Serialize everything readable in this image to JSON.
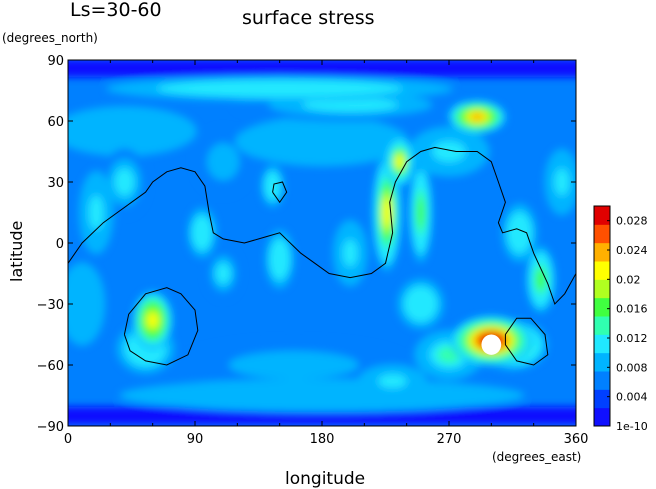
{
  "chart_data": {
    "type": "heatmap",
    "season_label": "Ls=30-60",
    "title": "surface stress",
    "xlabel": "longitude",
    "xunit": "(degrees_east)",
    "ylabel": "latitude",
    "yunit": "(degrees_north)",
    "xlim": [
      0,
      360
    ],
    "ylim": [
      -90,
      90
    ],
    "xticks": [
      0,
      90,
      180,
      270,
      360
    ],
    "yticks": [
      -90,
      -60,
      -30,
      0,
      30,
      60,
      90
    ],
    "colorbar": {
      "min": 0,
      "max": 0.03,
      "bottom_label": "1e-10",
      "tick_values": [
        0.004,
        0.008,
        0.012,
        0.016,
        0.02,
        0.024,
        0.028
      ],
      "tick_labels": [
        "0.004",
        "0.008",
        "0.012",
        "0.016",
        "0.02",
        "0.024",
        "0.028"
      ],
      "colors": [
        "#1010ff",
        "#0040ff",
        "#0080ff",
        "#00b4ff",
        "#20e8ff",
        "#30ffb0",
        "#40ff40",
        "#b0ff20",
        "#ffff00",
        "#ffb000",
        "#ff5000",
        "#e00000"
      ]
    },
    "background_value": 0.006,
    "features": [
      {
        "lon": 300,
        "lat": -48,
        "value": 0.03,
        "sx": 14,
        "sy": 6
      },
      {
        "lon": 315,
        "lat": -50,
        "value": 0.018,
        "sx": 12,
        "sy": 6
      },
      {
        "lon": 290,
        "lat": 62,
        "value": 0.024,
        "sx": 10,
        "sy": 4
      },
      {
        "lon": 60,
        "lat": -38,
        "value": 0.022,
        "sx": 7,
        "sy": 7
      },
      {
        "lon": 55,
        "lat": -52,
        "value": 0.012,
        "sx": 10,
        "sy": 6
      },
      {
        "lon": 226,
        "lat": 15,
        "value": 0.02,
        "sx": 5,
        "sy": 14
      },
      {
        "lon": 235,
        "lat": 40,
        "value": 0.02,
        "sx": 5,
        "sy": 6
      },
      {
        "lon": 250,
        "lat": 15,
        "value": 0.016,
        "sx": 4,
        "sy": 12
      },
      {
        "lon": 335,
        "lat": -18,
        "value": 0.016,
        "sx": 5,
        "sy": 8
      },
      {
        "lon": 320,
        "lat": 5,
        "value": 0.012,
        "sx": 6,
        "sy": 7
      },
      {
        "lon": 145,
        "lat": 28,
        "value": 0.012,
        "sx": 4,
        "sy": 5
      },
      {
        "lon": 95,
        "lat": 5,
        "value": 0.012,
        "sx": 5,
        "sy": 6
      },
      {
        "lon": 150,
        "lat": -8,
        "value": 0.012,
        "sx": 5,
        "sy": 7
      },
      {
        "lon": 200,
        "lat": -5,
        "value": 0.011,
        "sx": 6,
        "sy": 8
      },
      {
        "lon": 110,
        "lat": -15,
        "value": 0.01,
        "sx": 6,
        "sy": 6
      },
      {
        "lon": 20,
        "lat": 15,
        "value": 0.011,
        "sx": 6,
        "sy": 10
      },
      {
        "lon": 40,
        "lat": 30,
        "value": 0.01,
        "sx": 8,
        "sy": 8
      },
      {
        "lon": 270,
        "lat": 45,
        "value": 0.011,
        "sx": 14,
        "sy": 6
      },
      {
        "lon": 180,
        "lat": 50,
        "value": 0.009,
        "sx": 30,
        "sy": 6
      },
      {
        "lon": 40,
        "lat": 55,
        "value": 0.009,
        "sx": 25,
        "sy": 6
      },
      {
        "lon": 200,
        "lat": 68,
        "value": 0.01,
        "sx": 40,
        "sy": 4
      },
      {
        "lon": 150,
        "lat": 76,
        "value": 0.012,
        "sx": 60,
        "sy": 3
      },
      {
        "lon": 180,
        "lat": -75,
        "value": 0.009,
        "sx": 70,
        "sy": 4
      },
      {
        "lon": 250,
        "lat": -30,
        "value": 0.012,
        "sx": 8,
        "sy": 6
      },
      {
        "lon": 160,
        "lat": -60,
        "value": 0.008,
        "sx": 40,
        "sy": 6
      },
      {
        "lon": 230,
        "lat": -68,
        "value": 0.011,
        "sx": 12,
        "sy": 4
      },
      {
        "lon": 270,
        "lat": -55,
        "value": 0.013,
        "sx": 12,
        "sy": 6
      },
      {
        "lon": 350,
        "lat": 30,
        "value": 0.011,
        "sx": 6,
        "sy": 8
      },
      {
        "lon": 110,
        "lat": 40,
        "value": 0.008,
        "sx": 10,
        "sy": 8
      },
      {
        "lon": 10,
        "lat": -30,
        "value": 0.009,
        "sx": 8,
        "sy": 10
      }
    ],
    "low_bands": [
      {
        "lat": -85,
        "value": 0.0005
      },
      {
        "lat": 86,
        "value": 0.002
      }
    ],
    "white_spot": {
      "lon": 300,
      "lat": -50,
      "rx_deg": 7,
      "ry_deg": 5
    },
    "contour_lines": [
      [
        [
          0,
          -10
        ],
        [
          10,
          0
        ],
        [
          25,
          10
        ],
        [
          35,
          15
        ],
        [
          45,
          20
        ],
        [
          55,
          25
        ],
        [
          60,
          30
        ],
        [
          70,
          35
        ],
        [
          80,
          37
        ],
        [
          90,
          35
        ],
        [
          97,
          28
        ],
        [
          100,
          15
        ],
        [
          103,
          5
        ],
        [
          110,
          2
        ],
        [
          125,
          0
        ],
        [
          140,
          3
        ],
        [
          150,
          5
        ],
        [
          165,
          -5
        ],
        [
          175,
          -10
        ],
        [
          185,
          -15
        ],
        [
          200,
          -17
        ],
        [
          215,
          -15
        ],
        [
          225,
          -10
        ],
        [
          230,
          5
        ],
        [
          228,
          20
        ],
        [
          232,
          30
        ],
        [
          240,
          40
        ],
        [
          250,
          45
        ],
        [
          260,
          47
        ],
        [
          275,
          45
        ],
        [
          290,
          45
        ],
        [
          300,
          40
        ],
        [
          305,
          30
        ],
        [
          310,
          20
        ],
        [
          305,
          10
        ],
        [
          308,
          5
        ],
        [
          318,
          7
        ],
        [
          325,
          5
        ],
        [
          330,
          -5
        ],
        [
          340,
          -20
        ],
        [
          345,
          -30
        ],
        [
          352,
          -25
        ],
        [
          360,
          -15
        ]
      ],
      [
        [
          40,
          -45
        ],
        [
          43,
          -35
        ],
        [
          55,
          -25
        ],
        [
          70,
          -22
        ],
        [
          80,
          -25
        ],
        [
          90,
          -33
        ],
        [
          92,
          -43
        ],
        [
          85,
          -55
        ],
        [
          70,
          -60
        ],
        [
          55,
          -58
        ],
        [
          44,
          -53
        ],
        [
          40,
          -45
        ]
      ],
      [
        [
          145,
          25
        ],
        [
          150,
          20
        ],
        [
          155,
          25
        ],
        [
          152,
          30
        ],
        [
          146,
          29
        ],
        [
          145,
          25
        ]
      ],
      [
        [
          310,
          -45
        ],
        [
          318,
          -37
        ],
        [
          328,
          -37
        ],
        [
          338,
          -45
        ],
        [
          340,
          -55
        ],
        [
          330,
          -60
        ],
        [
          318,
          -58
        ],
        [
          310,
          -50
        ],
        [
          310,
          -45
        ]
      ]
    ]
  }
}
